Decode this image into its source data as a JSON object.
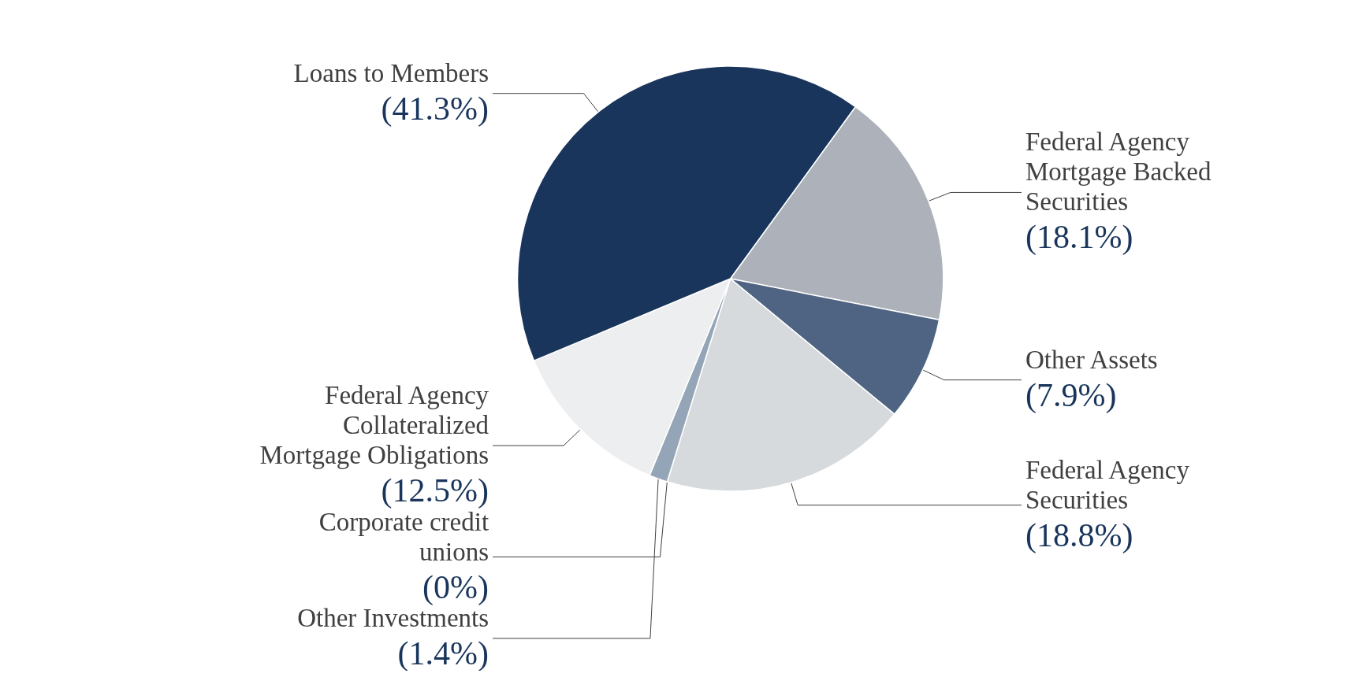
{
  "chart_data": {
    "type": "pie",
    "categories": [
      "Federal Agency Mortgage Backed Securities",
      "Other Assets",
      "Federal Agency Securities",
      "Corporate credit unions",
      "Other Investments",
      "Federal Agency Collateralized Mortgage Obligations",
      "Loans to Members"
    ],
    "values": [
      18.1,
      7.9,
      18.8,
      0,
      1.4,
      12.5,
      41.3
    ],
    "value_labels": [
      "(18.1%)",
      "(7.9%)",
      "(18.8%)",
      "(0%)",
      "(1.4%)",
      "(12.5%)",
      "(41.3%)"
    ],
    "colors": [
      "#adb2ba",
      "#4f6482",
      "#d6dadd",
      "#c9ced4",
      "#95a5b8",
      "#eceef0",
      "#19355c"
    ],
    "legend": false
  }
}
